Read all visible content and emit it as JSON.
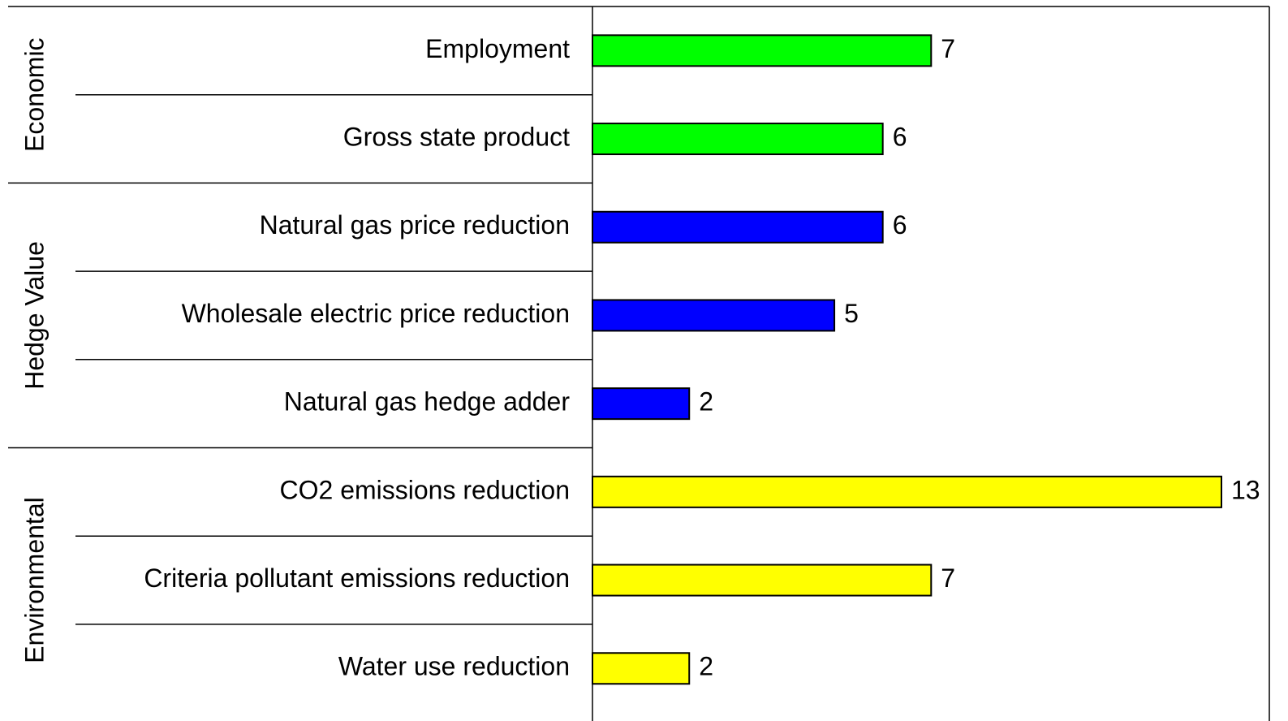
{
  "chart_data": {
    "type": "grouped-bar",
    "groups": [
      {
        "name": "Economic",
        "color": "#00ff00",
        "categories": [
          "Employment",
          "Gross state product"
        ],
        "values": [
          7,
          6
        ]
      },
      {
        "name": "Hedge Value",
        "color": "#0000ff",
        "categories": [
          "Natural gas price reduction",
          "Wholesale electric price reduction",
          "Natural gas hedge adder"
        ],
        "values": [
          6,
          5,
          2
        ]
      },
      {
        "name": "Environmental",
        "color": "#ffff00",
        "categories": [
          "CO2 emissions reduction",
          "Criteria pollutant emissions reduction",
          "Water use reduction"
        ],
        "values": [
          13,
          7,
          2
        ]
      }
    ]
  }
}
